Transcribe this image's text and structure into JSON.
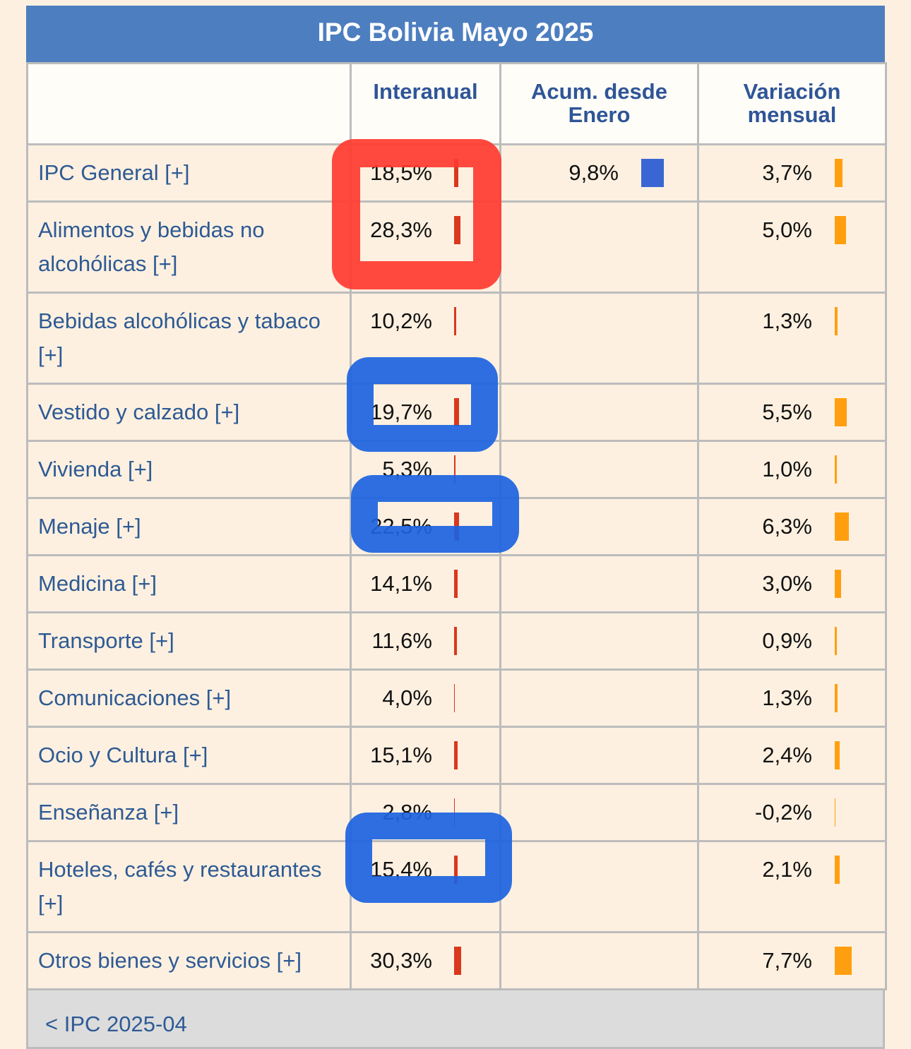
{
  "header": {
    "title": "IPC Bolivia Mayo 2025"
  },
  "table": {
    "columns": [
      "Interanual",
      "Acum. desde Enero",
      "Variación mensual"
    ],
    "rows": [
      {
        "label": "IPC General [+]",
        "interanual": {
          "value": 18.5,
          "label": "18,5%"
        },
        "acum": {
          "value": 9.8,
          "label": "9,8%"
        },
        "mensual": {
          "value": 3.7,
          "label": "3,7%"
        }
      },
      {
        "label": "Alimentos y bebidas no alcohólicas [+]",
        "interanual": {
          "value": 28.3,
          "label": "28,3%"
        },
        "mensual": {
          "value": 5.0,
          "label": "5,0%"
        }
      },
      {
        "label": "Bebidas alcohólicas y tabaco [+]",
        "interanual": {
          "value": 10.2,
          "label": "10,2%"
        },
        "mensual": {
          "value": 1.3,
          "label": "1,3%"
        }
      },
      {
        "label": "Vestido y calzado [+]",
        "interanual": {
          "value": 19.7,
          "label": "19,7%"
        },
        "mensual": {
          "value": 5.5,
          "label": "5,5%"
        }
      },
      {
        "label": "Vivienda [+]",
        "interanual": {
          "value": 5.3,
          "label": "5,3%"
        },
        "mensual": {
          "value": 1.0,
          "label": "1,0%"
        }
      },
      {
        "label": "Menaje [+]",
        "interanual": {
          "value": 22.5,
          "label": "22,5%"
        },
        "mensual": {
          "value": 6.3,
          "label": "6,3%"
        }
      },
      {
        "label": "Medicina [+]",
        "interanual": {
          "value": 14.1,
          "label": "14,1%"
        },
        "mensual": {
          "value": 3.0,
          "label": "3,0%"
        }
      },
      {
        "label": "Transporte [+]",
        "interanual": {
          "value": 11.6,
          "label": "11,6%"
        },
        "mensual": {
          "value": 0.9,
          "label": "0,9%"
        }
      },
      {
        "label": "Comunicaciones [+]",
        "interanual": {
          "value": 4.0,
          "label": "4,0%"
        },
        "mensual": {
          "value": 1.3,
          "label": "1,3%"
        }
      },
      {
        "label": "Ocio y Cultura [+]",
        "interanual": {
          "value": 15.1,
          "label": "15,1%"
        },
        "mensual": {
          "value": 2.4,
          "label": "2,4%"
        }
      },
      {
        "label": "Enseñanza [+]",
        "interanual": {
          "value": 2.8,
          "label": "2,8%"
        },
        "mensual": {
          "value": -0.2,
          "label": "-0,2%"
        }
      },
      {
        "label": "Hoteles, cafés y restaurantes [+]",
        "interanual": {
          "value": 15.4,
          "label": "15,4%"
        },
        "mensual": {
          "value": 2.1,
          "label": "2,1%"
        }
      },
      {
        "label": "Otros bienes y servicios [+]",
        "interanual": {
          "value": 30.3,
          "label": "30,3%"
        },
        "mensual": {
          "value": 7.7,
          "label": "7,7%"
        }
      }
    ]
  },
  "footer": {
    "link": "< IPC 2025-04"
  }
}
